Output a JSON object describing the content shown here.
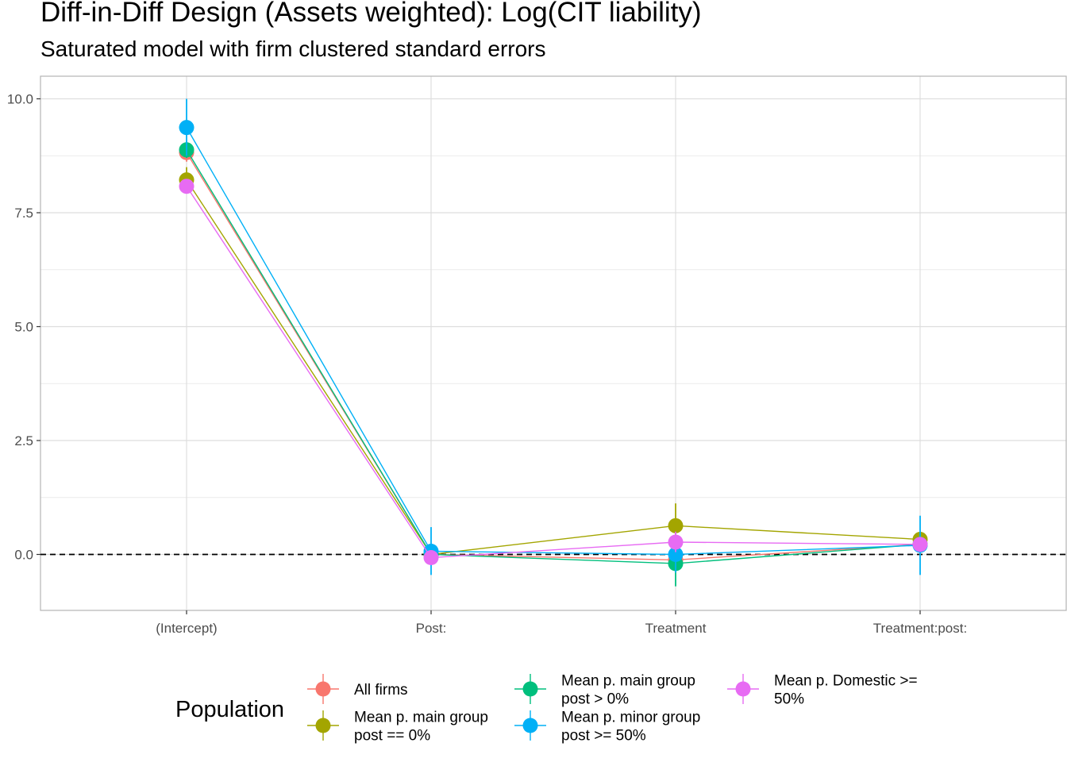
{
  "chart_data": {
    "type": "scatter",
    "title": "Diff-in-Diff Design (Assets weighted): Log(CIT liability)",
    "subtitle": "Saturated model with firm clustered standard errors",
    "xlabel": "",
    "ylabel": "",
    "categories": [
      "(Intercept)",
      "Post:",
      "Treatment",
      "Treatment:post:"
    ],
    "ylim": [
      -1.2,
      10.5
    ],
    "y_ticks": [
      0.0,
      2.5,
      5.0,
      7.5,
      10.0
    ],
    "y_tick_labels": [
      "0.0",
      "2.5",
      "5.0",
      "7.5",
      "10.0"
    ],
    "reference_line": 0,
    "grid": true,
    "legend_position": "bottom",
    "legend_title": "Population",
    "series": [
      {
        "name": "All firms",
        "color": "#F8766D",
        "values": [
          8.82,
          0.0,
          -0.12,
          0.22
        ],
        "lower": [
          8.62,
          -0.1,
          -0.3,
          0.08
        ],
        "upper": [
          9.02,
          0.1,
          0.06,
          0.36
        ]
      },
      {
        "name": "Mean p. main group post == 0%",
        "color": "#A3A500",
        "values": [
          8.22,
          0.0,
          0.63,
          0.33
        ],
        "lower": [
          7.95,
          -0.12,
          0.15,
          0.18
        ],
        "upper": [
          8.5,
          0.12,
          1.12,
          0.48
        ]
      },
      {
        "name": "Mean p. main group post > 0%",
        "color": "#00BF7D",
        "values": [
          8.88,
          0.0,
          -0.2,
          0.22
        ],
        "lower": [
          8.7,
          -0.1,
          -0.7,
          0.05
        ],
        "upper": [
          9.06,
          0.1,
          0.3,
          0.4
        ]
      },
      {
        "name": "Mean p. minor group post >= 50%",
        "color": "#00B0F6",
        "values": [
          9.37,
          0.07,
          0.0,
          0.2
        ],
        "lower": [
          8.75,
          -0.45,
          -0.4,
          -0.45
        ],
        "upper": [
          10.0,
          0.6,
          0.4,
          0.85
        ]
      },
      {
        "name": "Mean p. Domestic >= 50%",
        "color": "#E76BF3",
        "values": [
          8.08,
          -0.07,
          0.27,
          0.22
        ],
        "lower": [
          7.95,
          -0.2,
          0.05,
          0.1
        ],
        "upper": [
          8.2,
          0.06,
          0.5,
          0.35
        ]
      }
    ],
    "legend_labels": [
      [
        "All firms"
      ],
      [
        "Mean p. main group",
        "post == 0%"
      ],
      [
        "Mean p. main group",
        "post > 0%"
      ],
      [
        "Mean p. minor group",
        "post >= 50%"
      ],
      [
        "Mean p. Domestic >=",
        "50%"
      ]
    ]
  }
}
